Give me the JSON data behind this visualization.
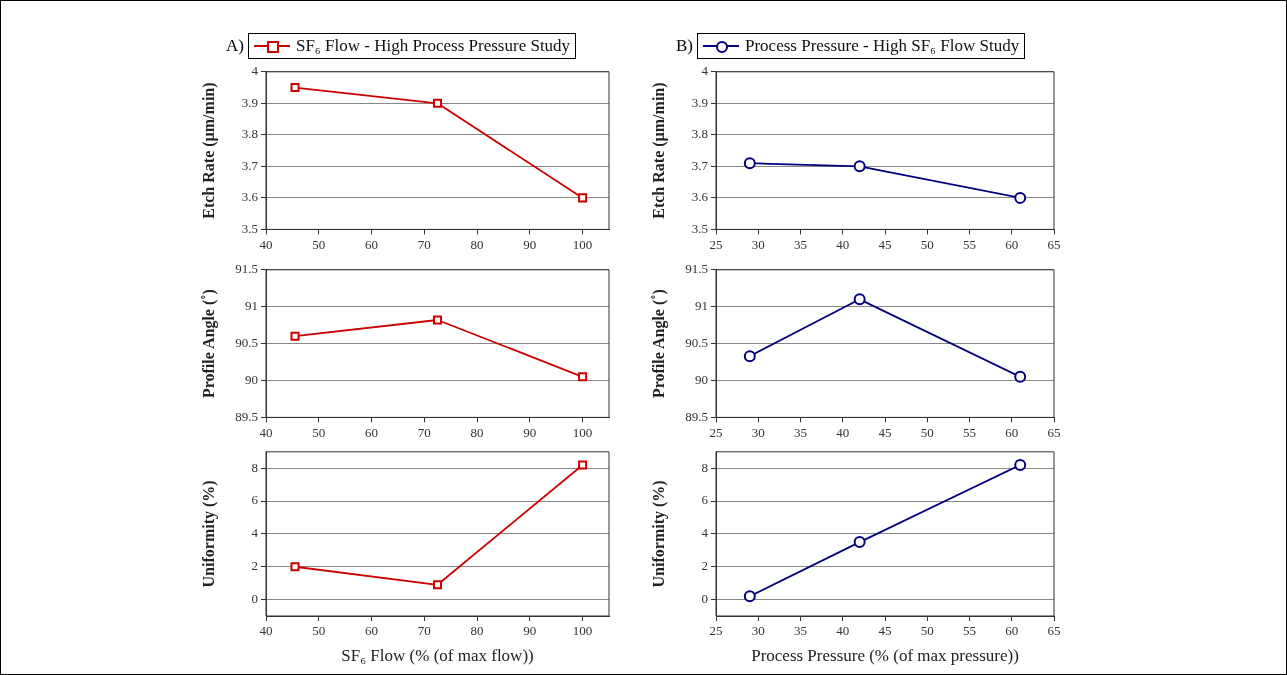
{
  "chart_data": [
    {
      "type": "line",
      "title": "A)",
      "ylabel": "Etch Rate (µm/min)",
      "x": [
        45.5,
        72.5,
        100
      ],
      "series": [
        {
          "name": "SF₆ Flow - High Process Pressure Study",
          "color": "#cc0000",
          "values": [
            3.95,
            3.9,
            3.6
          ]
        }
      ],
      "xlim": [
        40,
        105
      ],
      "xticks": [
        40,
        50,
        60,
        70,
        80,
        90,
        100
      ],
      "ylim": [
        3.5,
        4
      ],
      "yticks": [
        3.5,
        3.6,
        3.7,
        3.8,
        3.9,
        4
      ],
      "grid": "y",
      "legend": "top",
      "marker": "square"
    },
    {
      "type": "line",
      "title": "B)",
      "ylabel": "Etch Rate (µm/min)",
      "x": [
        29,
        42,
        61
      ],
      "series": [
        {
          "name": "Process Pressure - High SF₆ Flow Study",
          "color": "#000080",
          "values": [
            3.71,
            3.7,
            3.6
          ]
        }
      ],
      "xlim": [
        25,
        65
      ],
      "xticks": [
        25,
        30,
        35,
        40,
        45,
        50,
        55,
        60,
        65
      ],
      "ylim": [
        3.5,
        4
      ],
      "yticks": [
        3.5,
        3.6,
        3.7,
        3.8,
        3.9,
        4
      ],
      "grid": "y",
      "legend": "top",
      "marker": "circle"
    },
    {
      "type": "line",
      "ylabel": "Profile Angle (˚)",
      "x": [
        45.5,
        72.5,
        100
      ],
      "series": [
        {
          "color": "#cc0000",
          "values": [
            90.6,
            90.82,
            90.05
          ]
        }
      ],
      "xlim": [
        40,
        105
      ],
      "xticks": [
        40,
        50,
        60,
        70,
        80,
        90,
        100
      ],
      "ylim": [
        89.5,
        91.5
      ],
      "yticks": [
        89.5,
        90,
        90.5,
        91,
        91.5
      ],
      "grid": "y",
      "marker": "square"
    },
    {
      "type": "line",
      "ylabel": "Profile Angle (˚)",
      "x": [
        29,
        42,
        61
      ],
      "series": [
        {
          "color": "#000080",
          "values": [
            90.33,
            91.1,
            90.05
          ]
        }
      ],
      "xlim": [
        25,
        65
      ],
      "xticks": [
        25,
        30,
        35,
        40,
        45,
        50,
        55,
        60,
        65
      ],
      "ylim": [
        89.5,
        91.5
      ],
      "yticks": [
        89.5,
        90,
        90.5,
        91,
        91.5
      ],
      "grid": "y",
      "marker": "circle"
    },
    {
      "type": "line",
      "xlabel": "SF₆ Flow (% (of max flow))",
      "ylabel": "Uniformity (%)",
      "x": [
        45.5,
        72.5,
        100
      ],
      "series": [
        {
          "color": "#cc0000",
          "values": [
            2.0,
            0.9,
            8.2
          ]
        }
      ],
      "xlim": [
        40,
        105
      ],
      "xticks": [
        40,
        50,
        60,
        70,
        80,
        90,
        100
      ],
      "ylim": [
        -1,
        9
      ],
      "yticks": [
        0,
        2,
        4,
        6,
        8
      ],
      "grid": "y",
      "marker": "square"
    },
    {
      "type": "line",
      "xlabel": "Process Pressure (% (of max pressure))",
      "ylabel": "Uniformity (%)",
      "x": [
        29,
        42,
        61
      ],
      "series": [
        {
          "color": "#000080",
          "values": [
            0.2,
            3.5,
            8.2
          ]
        }
      ],
      "xlim": [
        25,
        65
      ],
      "xticks": [
        25,
        30,
        35,
        40,
        45,
        50,
        55,
        60,
        65
      ],
      "ylim": [
        -1,
        9
      ],
      "yticks": [
        0,
        2,
        4,
        6,
        8
      ],
      "grid": "y",
      "marker": "circle"
    }
  ]
}
